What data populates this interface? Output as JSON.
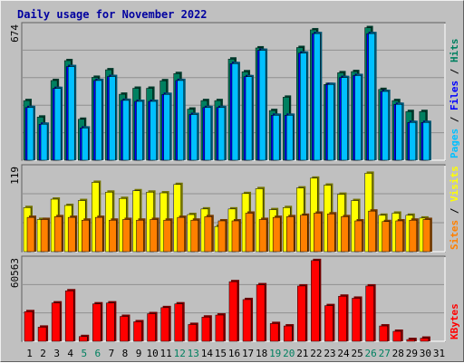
{
  "chart_data": {
    "type": "bar",
    "title": "Daily usage for November 2022",
    "x": [
      "1",
      "2",
      "3",
      "4",
      "5",
      "6",
      "7",
      "8",
      "9",
      "10",
      "11",
      "12",
      "13",
      "14",
      "15",
      "16",
      "17",
      "18",
      "19",
      "20",
      "21",
      "22",
      "23",
      "24",
      "25",
      "26",
      "27",
      "28",
      "29",
      "30",
      "31"
    ],
    "weekend_days": [
      "5",
      "6",
      "12",
      "13",
      "19",
      "20",
      "26",
      "27"
    ],
    "grid": true,
    "panels": [
      {
        "id": "pages_files_hits",
        "max_label": "674",
        "ymax": 674,
        "side_labels": [
          {
            "text": "Pages",
            "color": "#00c0ff"
          },
          {
            "text": " / ",
            "color": "#000000"
          },
          {
            "text": "Files",
            "color": "#0000ff"
          },
          {
            "text": " / ",
            "color": "#000000"
          },
          {
            "text": "Hits",
            "color": "#008060"
          }
        ],
        "series": [
          {
            "name": "Hits",
            "color": "#008060",
            "values": [
              300,
              217,
              401,
              501,
              206,
              417,
              455,
              332,
              362,
              362,
              400,
              436,
              257,
              300,
              300,
              509,
              445,
              565,
              250,
              317,
              567,
              656,
              381,
              440,
              446,
              667,
              356,
              300,
              245,
              245,
              0
            ]
          },
          {
            "name": "Files",
            "color": "#0000ff",
            "values": [
              265,
              181,
              361,
              471,
              162,
              401,
              421,
              301,
              296,
              296,
              331,
              401,
              230,
              265,
              265,
              486,
              420,
              553,
              226,
              226,
              539,
              637,
              381,
              416,
              426,
              637,
              346,
              281,
              190,
              190,
              0
            ]
          },
          {
            "name": "Pages",
            "color": "#00c0ff",
            "values": [
              265,
              181,
              361,
              471,
              162,
              401,
              421,
              301,
              296,
              296,
              331,
              401,
              230,
              265,
              265,
              486,
              420,
              553,
              226,
              226,
              539,
              637,
              381,
              416,
              426,
              637,
              346,
              281,
              190,
              190,
              0
            ]
          }
        ]
      },
      {
        "id": "visits_sites",
        "max_label": "119",
        "ymax": 119,
        "side_labels": [
          {
            "text": "Sites",
            "color": "#ff8000"
          },
          {
            "text": " / ",
            "color": "#000000"
          },
          {
            "text": "Visits",
            "color": "#ffff00"
          }
        ],
        "series": [
          {
            "name": "Visits",
            "color": "#ffff00",
            "values": [
              63,
              46,
              75,
              66,
              73,
              99,
              85,
              76,
              87,
              85,
              84,
              96,
              53,
              61,
              36,
              61,
              83,
              90,
              60,
              63,
              91,
              105,
              95,
              82,
              73,
              112,
              52,
              55,
              52,
              48,
              0
            ]
          },
          {
            "name": "Sites",
            "color": "#ff8000",
            "values": [
              49,
              46,
              50,
              49,
              45,
              49,
              45,
              46,
              45,
              46,
              45,
              49,
              45,
              50,
              44,
              44,
              55,
              46,
              49,
              50,
              52,
              55,
              54,
              50,
              44,
              58,
              43,
              44,
              45,
              46,
              0
            ]
          }
        ]
      },
      {
        "id": "kbytes",
        "max_label": "60563",
        "ymax": 60563,
        "side_labels": [
          {
            "text": "KBytes",
            "color": "#ff0000"
          }
        ],
        "series": [
          {
            "name": "KBytes",
            "color": "#ff0000",
            "values": [
              22000,
              10500,
              28500,
              37500,
              3500,
              27800,
              28500,
              18500,
              14500,
              20500,
              25000,
              27800,
              12500,
              18000,
              19500,
              44300,
              31000,
              42000,
              13200,
              11400,
              41100,
              60000,
              26500,
              33500,
              32000,
              41100,
              11400,
              7400,
              1300,
              2300,
              0
            ]
          }
        ]
      }
    ]
  }
}
